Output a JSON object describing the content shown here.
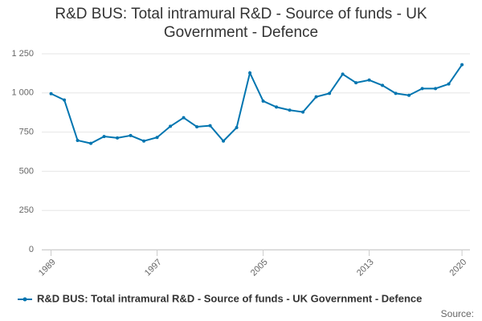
{
  "chart_data": {
    "type": "line",
    "title": "R&D BUS: Total intramural R&D - Source of funds - UK Government - Defence",
    "x": [
      1989,
      1990,
      1991,
      1992,
      1993,
      1994,
      1995,
      1996,
      1997,
      1998,
      1999,
      2000,
      2001,
      2002,
      2003,
      2004,
      2005,
      2006,
      2007,
      2008,
      2009,
      2010,
      2011,
      2012,
      2013,
      2014,
      2015,
      2016,
      2017,
      2018,
      2019,
      2020
    ],
    "series": [
      {
        "name": "R&D BUS: Total intramural R&D - Source of funds - UK Government - Defence",
        "color": "#0075b0",
        "values": [
          995,
          955,
          697,
          678,
          722,
          713,
          728,
          693,
          716,
          787,
          842,
          784,
          791,
          693,
          779,
          1128,
          948,
          910,
          890,
          878,
          975,
          997,
          1120,
          1065,
          1082,
          1048,
          997,
          985,
          1028,
          1028,
          1057,
          1180
        ]
      }
    ],
    "xlim": [
      1988.3,
      2020.6
    ],
    "xticks": [
      1989,
      1997,
      2005,
      2013,
      2020
    ],
    "ylim": [
      0,
      1250
    ],
    "yticks": [
      0,
      250,
      500,
      750,
      {
        "value": 1000,
        "label": "1 000"
      },
      {
        "value": 1250,
        "label": "1 250"
      }
    ],
    "grid": true,
    "legend": "bottom",
    "source": "Source:"
  }
}
